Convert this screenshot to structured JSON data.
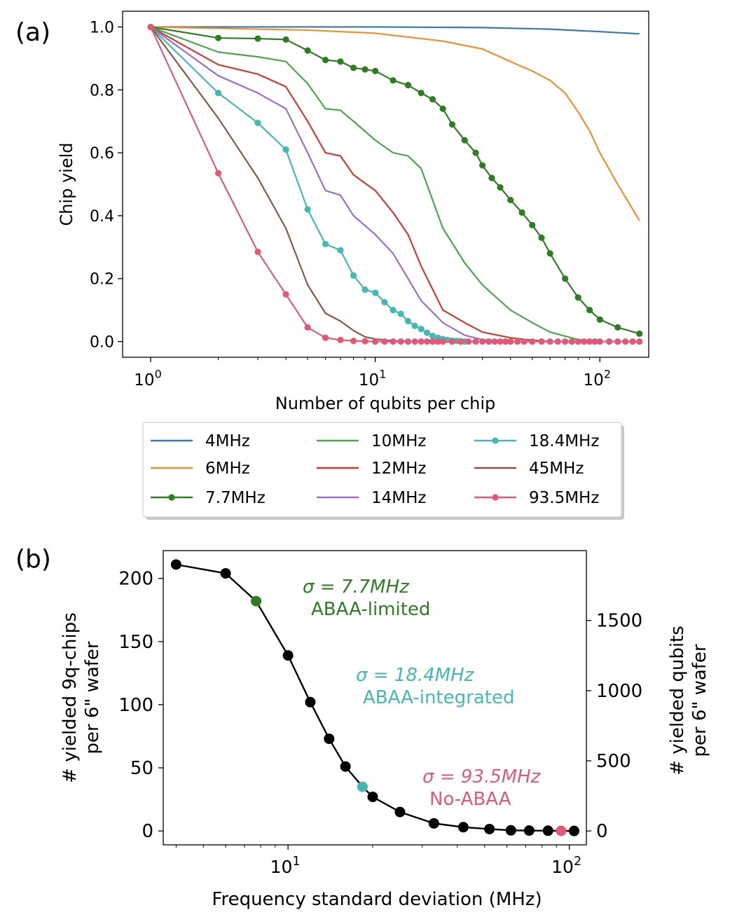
{
  "panel_a": {
    "label": "(a)",
    "ylabel": "Chip yield",
    "xlabel": "Number of qubits per chip",
    "ytick_labels": [
      "0.0",
      "0.2",
      "0.4",
      "0.6",
      "0.8",
      "1.0"
    ],
    "xtick_base": "10",
    "xtick_exps": [
      "0",
      "1",
      "2"
    ]
  },
  "panel_b": {
    "label": "(b)",
    "ylabel_line1": "# yielded 9q-chips",
    "ylabel_line2": "per 6\" wafer",
    "y2label_line1": "# yielded qubits",
    "y2label_line2": "per 6\" wafer",
    "xlabel": "Frequency standard deviation (MHz)",
    "ytick_labels": [
      "0",
      "50",
      "100",
      "150",
      "200"
    ],
    "y2tick_labels": [
      "0",
      "500",
      "1000",
      "1500"
    ],
    "xtick_base": "10",
    "xtick_exps": [
      "1",
      "2"
    ],
    "annotations": [
      {
        "sigma_text": "σ = 7.7",
        "unit": "MHz",
        "desc": "ABAA-limited",
        "color": "#2e7d22"
      },
      {
        "sigma_text": "σ = 18.4",
        "unit": "MHz",
        "desc": "ABAA-integrated",
        "color": "#44b8b3"
      },
      {
        "sigma_text": "σ = 93.5",
        "unit": "MHz",
        "desc": "No-ABAA",
        "color": "#e05a78"
      }
    ]
  },
  "legend": [
    {
      "label": "4MHz",
      "color": "#3a76af",
      "markers": false
    },
    {
      "label": "6MHz",
      "color": "#f28e2b",
      "markers": false
    },
    {
      "label": "7.7MHz",
      "color": "#2e7d22",
      "markers": true
    },
    {
      "label": "10MHz",
      "color": "#4ca64c",
      "markers": false
    },
    {
      "label": "12MHz",
      "color": "#cc3b33",
      "markers": false
    },
    {
      "label": "14MHz",
      "color": "#9b70c4",
      "markers": false
    },
    {
      "label": "18.4MHz",
      "color": "#44b8b3",
      "markers": true
    },
    {
      "label": "45MHz",
      "color": "#8c564b",
      "markers": false
    },
    {
      "label": "93.5MHz",
      "color": "#e05a78",
      "markers": true
    }
  ],
  "chart_data": [
    {
      "type": "line",
      "title": "(a)",
      "xlabel": "Number of qubits per chip",
      "ylabel": "Chip yield",
      "xscale": "log",
      "xlim": [
        0.75,
        165
      ],
      "ylim": [
        -0.05,
        1.05
      ],
      "series": [
        {
          "name": "4MHz",
          "color": "#3a76af",
          "markers": false,
          "x": [
            1,
            10,
            30,
            60,
            100,
            150
          ],
          "y": [
            1.0,
            1.0,
            0.998,
            0.993,
            0.985,
            0.978
          ]
        },
        {
          "name": "6MHz",
          "color": "#f28e2b",
          "markers": false,
          "x": [
            1,
            5,
            10,
            20,
            30,
            40,
            50,
            60,
            70,
            80,
            90,
            100,
            120,
            150
          ],
          "y": [
            1.0,
            0.99,
            0.98,
            0.955,
            0.93,
            0.89,
            0.86,
            0.83,
            0.79,
            0.73,
            0.67,
            0.6,
            0.5,
            0.385
          ]
        },
        {
          "name": "7.7MHz",
          "color": "#2e7d22",
          "markers": true,
          "x": [
            1,
            2,
            3,
            4,
            5,
            6,
            7,
            8,
            9,
            10,
            12,
            14,
            16,
            18,
            20,
            22,
            25,
            28,
            30,
            33,
            36,
            40,
            45,
            50,
            55,
            60,
            70,
            80,
            90,
            100,
            120,
            150
          ],
          "y": [
            1.0,
            0.965,
            0.963,
            0.96,
            0.925,
            0.895,
            0.89,
            0.87,
            0.865,
            0.86,
            0.83,
            0.815,
            0.79,
            0.77,
            0.74,
            0.69,
            0.64,
            0.6,
            0.56,
            0.52,
            0.49,
            0.45,
            0.41,
            0.37,
            0.33,
            0.28,
            0.2,
            0.14,
            0.1,
            0.07,
            0.045,
            0.025
          ]
        },
        {
          "name": "10MHz",
          "color": "#4ca64c",
          "markers": false,
          "x": [
            1,
            2,
            3,
            4,
            5,
            6,
            7,
            8,
            10,
            12,
            14,
            16,
            20,
            25,
            30,
            40,
            50,
            60,
            80,
            100
          ],
          "y": [
            1.0,
            0.92,
            0.905,
            0.89,
            0.82,
            0.74,
            0.735,
            0.7,
            0.64,
            0.6,
            0.59,
            0.55,
            0.36,
            0.25,
            0.18,
            0.1,
            0.06,
            0.03,
            0.006,
            0.0
          ]
        },
        {
          "name": "12MHz",
          "color": "#cc3b33",
          "markers": false,
          "x": [
            1,
            2,
            3,
            4,
            5,
            6,
            7,
            8,
            10,
            12,
            14,
            16,
            20,
            25,
            30,
            40,
            50,
            60
          ],
          "y": [
            1.0,
            0.88,
            0.85,
            0.81,
            0.7,
            0.6,
            0.59,
            0.53,
            0.48,
            0.41,
            0.34,
            0.24,
            0.1,
            0.06,
            0.03,
            0.012,
            0.004,
            0.0
          ]
        },
        {
          "name": "14MHz",
          "color": "#9b70c4",
          "markers": false,
          "x": [
            1,
            2,
            3,
            4,
            5,
            6,
            7,
            8,
            10,
            12,
            14,
            16,
            20,
            25,
            30,
            40
          ],
          "y": [
            1.0,
            0.845,
            0.79,
            0.74,
            0.6,
            0.48,
            0.465,
            0.4,
            0.34,
            0.28,
            0.2,
            0.13,
            0.06,
            0.02,
            0.006,
            0.0
          ]
        },
        {
          "name": "18.4MHz",
          "color": "#44b8b3",
          "markers": true,
          "x": [
            1,
            2,
            3,
            4,
            5,
            6,
            7,
            8,
            9,
            10,
            11,
            12,
            13,
            14,
            15,
            16,
            17,
            18,
            19,
            20,
            21,
            22,
            23,
            24,
            25
          ],
          "y": [
            1.0,
            0.79,
            0.695,
            0.61,
            0.42,
            0.31,
            0.29,
            0.21,
            0.165,
            0.155,
            0.125,
            0.1,
            0.088,
            0.065,
            0.05,
            0.04,
            0.028,
            0.018,
            0.012,
            0.008,
            0.005,
            0.003,
            0.002,
            0.001,
            0.0
          ]
        },
        {
          "name": "45MHz",
          "color": "#8c564b",
          "markers": false,
          "x": [
            1,
            2,
            3,
            4,
            5,
            6,
            7,
            8,
            9,
            10,
            12,
            15
          ],
          "y": [
            1.0,
            0.71,
            0.52,
            0.36,
            0.18,
            0.09,
            0.065,
            0.035,
            0.015,
            0.008,
            0.002,
            0.0
          ]
        },
        {
          "name": "93.5MHz",
          "color": "#e05a78",
          "markers": true,
          "x": [
            1,
            2,
            3,
            4,
            5,
            6,
            7,
            8,
            9,
            10,
            11,
            12,
            13,
            14,
            15,
            16,
            17,
            18,
            19,
            20,
            22,
            24,
            26,
            28,
            30,
            32,
            34,
            36,
            38,
            40,
            43,
            46,
            50,
            55,
            60,
            65,
            70,
            75,
            80,
            85,
            90,
            95,
            100,
            110,
            120,
            130,
            140,
            150
          ],
          "y": [
            1.0,
            0.535,
            0.285,
            0.15,
            0.045,
            0.012,
            0.005,
            0.002,
            0.001,
            0,
            0,
            0,
            0,
            0,
            0,
            0,
            0,
            0,
            0,
            0,
            0,
            0,
            0,
            0,
            0,
            0,
            0,
            0,
            0,
            0,
            0,
            0,
            0,
            0,
            0,
            0,
            0,
            0,
            0,
            0,
            0,
            0,
            0,
            0,
            0,
            0,
            0,
            0
          ]
        }
      ]
    },
    {
      "type": "line",
      "title": "(b)",
      "xlabel": "Frequency standard deviation (MHz)",
      "ylabel": "# yielded 9q-chips per 6\" wafer",
      "y2label": "# yielded qubits per 6\" wafer",
      "xscale": "log",
      "xlim": [
        3.6,
        115
      ],
      "ylim": [
        -11,
        222
      ],
      "y2ticks": [
        0,
        500,
        1000,
        1500
      ],
      "y2_per_y": 9,
      "series": [
        {
          "name": "yield",
          "color": "#000000",
          "x": [
            4,
            6,
            7.7,
            10,
            12,
            14,
            16,
            18.4,
            20,
            25,
            33,
            42,
            52,
            62,
            72,
            84,
            93.5,
            104
          ],
          "y": [
            211,
            204,
            182,
            139,
            102,
            73,
            51,
            35,
            27,
            15,
            6,
            3,
            1.5,
            0.5,
            0.3,
            0.2,
            0.1,
            0
          ],
          "highlight": [
            {
              "x": 7.7,
              "y": 182,
              "color": "#2e7d22"
            },
            {
              "x": 18.4,
              "y": 35,
              "color": "#44b8b3"
            },
            {
              "x": 93.5,
              "y": 0.1,
              "color": "#e05a78"
            }
          ]
        }
      ]
    }
  ]
}
